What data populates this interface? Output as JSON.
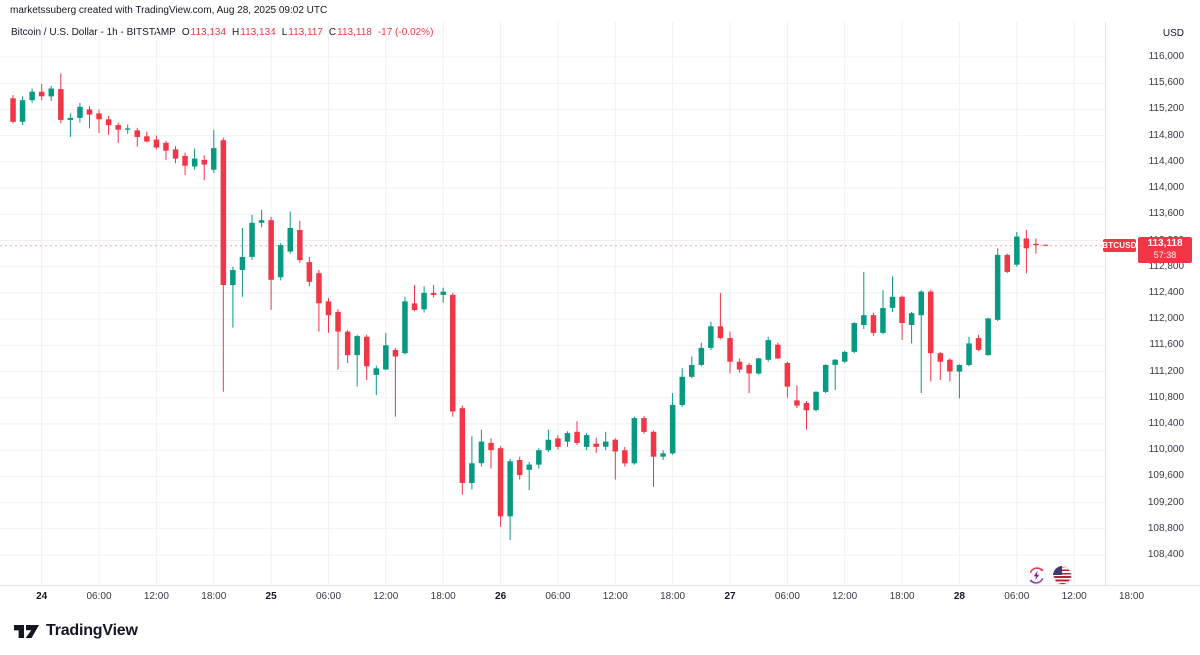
{
  "attribution": "marketssuberg created with TradingView.com, Aug 28, 2025 09:02 UTC",
  "legend": {
    "title": "Bitcoin / U.S. Dollar - 1h - BITSTAMP",
    "o_label": "O",
    "o_value": "113,134",
    "h_label": "H",
    "h_value": "113,134",
    "l_label": "L",
    "l_value": "113,117",
    "c_label": "C",
    "c_value": "113,118",
    "change": "-17 (-0.02%)"
  },
  "price_scale": {
    "unit": "USD",
    "min": 108400,
    "max": 116000,
    "step": 400
  },
  "price_label": {
    "symbol": "BTCUSD",
    "price": "113,118",
    "countdown": "57:38",
    "value": 113118
  },
  "footer": {
    "logo_text": "TradingView"
  },
  "colors": {
    "up": "#089981",
    "down": "#f23645",
    "grid": "#eef0f3",
    "price_line": "rgba(242,54,69,0.45)",
    "label_bg": "#f23645",
    "text": "#131722"
  },
  "chart_data": {
    "type": "candlestick",
    "title": "Bitcoin / U.S. Dollar",
    "exchange": "BITSTAMP",
    "interval": "1h",
    "start": "2025-08-23 21:00 UTC",
    "end": "2025-08-28 09:00 UTC",
    "y_range": [
      108400,
      116000
    ],
    "y_step": 400,
    "grid": true,
    "last_price": 113118,
    "time_ticks": [
      {
        "label": "24",
        "i": 3,
        "day": true
      },
      {
        "label": "06:00",
        "i": 9,
        "day": false
      },
      {
        "label": "12:00",
        "i": 15,
        "day": false
      },
      {
        "label": "18:00",
        "i": 21,
        "day": false
      },
      {
        "label": "25",
        "i": 27,
        "day": true
      },
      {
        "label": "06:00",
        "i": 33,
        "day": false
      },
      {
        "label": "12:00",
        "i": 39,
        "day": false
      },
      {
        "label": "18:00",
        "i": 45,
        "day": false
      },
      {
        "label": "26",
        "i": 51,
        "day": true
      },
      {
        "label": "06:00",
        "i": 57,
        "day": false
      },
      {
        "label": "12:00",
        "i": 63,
        "day": false
      },
      {
        "label": "18:00",
        "i": 69,
        "day": false
      },
      {
        "label": "27",
        "i": 75,
        "day": true
      },
      {
        "label": "06:00",
        "i": 81,
        "day": false
      },
      {
        "label": "12:00",
        "i": 87,
        "day": false
      },
      {
        "label": "18:00",
        "i": 93,
        "day": false
      },
      {
        "label": "28",
        "i": 99,
        "day": true
      },
      {
        "label": "06:00",
        "i": 105,
        "day": false
      },
      {
        "label": "12:00",
        "i": 111,
        "day": false
      },
      {
        "label": "18:00",
        "i": 117,
        "day": false
      }
    ],
    "candles": [
      [
        115370,
        115420,
        114990,
        115010
      ],
      [
        115010,
        115400,
        114960,
        115340
      ],
      [
        115340,
        115520,
        115300,
        115470
      ],
      [
        115470,
        115590,
        115340,
        115400
      ],
      [
        115400,
        115560,
        115330,
        115520
      ],
      [
        115510,
        115750,
        114990,
        115040
      ],
      [
        115040,
        115140,
        114780,
        115070
      ],
      [
        115070,
        115300,
        115000,
        115240
      ],
      [
        115200,
        115250,
        114910,
        115120
      ],
      [
        115140,
        115200,
        114840,
        115050
      ],
      [
        115050,
        115100,
        114810,
        114960
      ],
      [
        114960,
        115000,
        114690,
        114890
      ],
      [
        114890,
        114970,
        114830,
        114910
      ],
      [
        114880,
        114920,
        114630,
        114780
      ],
      [
        114790,
        114860,
        114700,
        114710
      ],
      [
        114740,
        114800,
        114590,
        114620
      ],
      [
        114690,
        114720,
        114430,
        114570
      ],
      [
        114590,
        114640,
        114380,
        114450
      ],
      [
        114490,
        114540,
        114200,
        114340
      ],
      [
        114330,
        114600,
        114280,
        114450
      ],
      [
        114430,
        114500,
        114120,
        114360
      ],
      [
        114280,
        114890,
        114230,
        114610
      ],
      [
        114730,
        114770,
        110890,
        112520
      ],
      [
        112520,
        112800,
        111870,
        112750
      ],
      [
        112750,
        113390,
        112340,
        112950
      ],
      [
        112950,
        113590,
        112900,
        113470
      ],
      [
        113470,
        113670,
        113400,
        113510
      ],
      [
        113510,
        113560,
        112140,
        112600
      ],
      [
        112640,
        113160,
        112590,
        113130
      ],
      [
        113030,
        113640,
        113000,
        113390
      ],
      [
        113360,
        113500,
        112860,
        112900
      ],
      [
        112870,
        112950,
        112500,
        112570
      ],
      [
        112700,
        112750,
        111810,
        112240
      ],
      [
        112270,
        112320,
        111790,
        112060
      ],
      [
        112110,
        112150,
        111230,
        111810
      ],
      [
        111810,
        111830,
        111330,
        111450
      ],
      [
        111450,
        111760,
        110970,
        111740
      ],
      [
        111730,
        111760,
        111070,
        111280
      ],
      [
        111150,
        111290,
        110840,
        111250
      ],
      [
        111230,
        111790,
        111220,
        111600
      ],
      [
        111530,
        111560,
        110510,
        111430
      ],
      [
        111480,
        112340,
        111460,
        112270
      ],
      [
        112240,
        112520,
        112120,
        112140
      ],
      [
        112150,
        112500,
        112100,
        112400
      ],
      [
        112400,
        112520,
        112330,
        112370
      ],
      [
        112370,
        112480,
        112250,
        112420
      ],
      [
        112370,
        112400,
        110510,
        110590
      ],
      [
        110640,
        110680,
        109320,
        109500
      ],
      [
        109500,
        110210,
        109400,
        109800
      ],
      [
        109800,
        110310,
        109750,
        110130
      ],
      [
        110110,
        110180,
        109720,
        110000
      ],
      [
        110030,
        110060,
        108830,
        108990
      ],
      [
        108990,
        109870,
        108630,
        109830
      ],
      [
        109850,
        109900,
        109550,
        109620
      ],
      [
        109700,
        109820,
        109390,
        109780
      ],
      [
        109780,
        110030,
        109720,
        110000
      ],
      [
        110000,
        110310,
        109970,
        110160
      ],
      [
        110180,
        110230,
        110010,
        110050
      ],
      [
        110130,
        110290,
        110050,
        110260
      ],
      [
        110280,
        110440,
        110080,
        110110
      ],
      [
        110050,
        110260,
        110000,
        110230
      ],
      [
        110100,
        110190,
        109960,
        110050
      ],
      [
        110050,
        110280,
        110000,
        110130
      ],
      [
        110160,
        110180,
        109550,
        109980
      ],
      [
        110000,
        110050,
        109750,
        109800
      ],
      [
        109800,
        110510,
        109780,
        110490
      ],
      [
        110490,
        110520,
        110250,
        110280
      ],
      [
        110280,
        110300,
        109440,
        109900
      ],
      [
        109900,
        110000,
        109850,
        109950
      ],
      [
        109950,
        110870,
        109930,
        110690
      ],
      [
        110690,
        111250,
        110660,
        111120
      ],
      [
        111120,
        111430,
        111100,
        111300
      ],
      [
        111300,
        111640,
        111280,
        111560
      ],
      [
        111560,
        111960,
        111530,
        111890
      ],
      [
        111890,
        112400,
        111690,
        111710
      ],
      [
        111710,
        111810,
        111170,
        111350
      ],
      [
        111350,
        111400,
        111180,
        111230
      ],
      [
        111300,
        111330,
        110870,
        111170
      ],
      [
        111170,
        111410,
        111150,
        111400
      ],
      [
        111380,
        111730,
        111350,
        111680
      ],
      [
        111610,
        111640,
        111390,
        111400
      ],
      [
        111330,
        111350,
        110800,
        110970
      ],
      [
        110760,
        110990,
        110640,
        110680
      ],
      [
        110720,
        110750,
        110310,
        110610
      ],
      [
        110610,
        110900,
        110590,
        110890
      ],
      [
        110890,
        111310,
        110870,
        111300
      ],
      [
        111300,
        111390,
        110920,
        111380
      ],
      [
        111350,
        111520,
        111330,
        111500
      ],
      [
        111500,
        111950,
        111480,
        111940
      ],
      [
        111910,
        112720,
        111850,
        112060
      ],
      [
        112060,
        112100,
        111740,
        111790
      ],
      [
        111790,
        112440,
        111770,
        112170
      ],
      [
        112170,
        112650,
        112110,
        112340
      ],
      [
        112340,
        112360,
        111680,
        111940
      ],
      [
        111910,
        112110,
        111630,
        112090
      ],
      [
        112060,
        112440,
        110870,
        112420
      ],
      [
        112420,
        112450,
        111050,
        111480
      ],
      [
        111480,
        111500,
        111070,
        111350
      ],
      [
        111380,
        111400,
        111050,
        111200
      ],
      [
        111200,
        111310,
        110790,
        111300
      ],
      [
        111300,
        111730,
        111280,
        111630
      ],
      [
        111710,
        111760,
        111510,
        111530
      ],
      [
        111450,
        112020,
        111440,
        112010
      ],
      [
        111990,
        113080,
        111970,
        112980
      ],
      [
        112980,
        113000,
        112700,
        112720
      ],
      [
        112830,
        113330,
        112800,
        113260
      ],
      [
        113230,
        113360,
        112700,
        113080
      ],
      [
        113150,
        113230,
        113000,
        113130
      ],
      [
        113134,
        113134,
        113117,
        113118
      ]
    ]
  }
}
